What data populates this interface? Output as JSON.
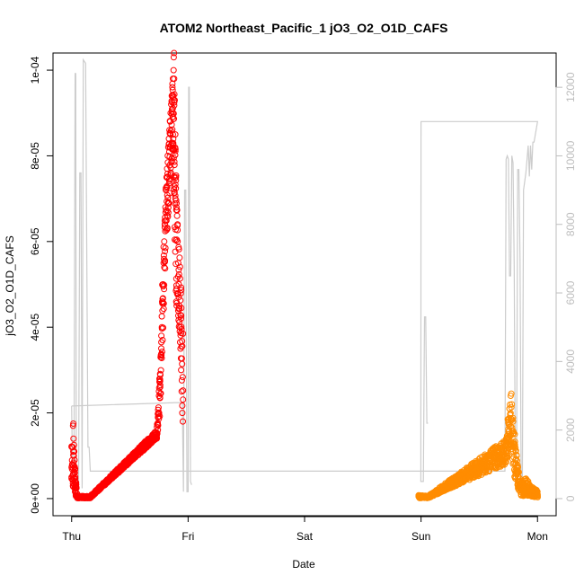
{
  "chart_data": {
    "type": "scatter",
    "title": "ATOM2 Northeast_Pacific_1 jO3_O2_O1D_CAFS",
    "xlabel": "Date",
    "ylabel": "jO3_O2_O1D_CAFS",
    "x_unit": "days since Thu 00:00",
    "xlim": [
      -0.16,
      4.16
    ],
    "ylim": [
      -4e-06,
      0.000104
    ],
    "y2lim": [
      -500,
      13000
    ],
    "x_ticks": [
      {
        "value": 0,
        "label": "Thu"
      },
      {
        "value": 1,
        "label": "Fri"
      },
      {
        "value": 2,
        "label": "Sat"
      },
      {
        "value": 3,
        "label": "Sun"
      },
      {
        "value": 4,
        "label": "Mon"
      }
    ],
    "y_ticks": [
      {
        "value": 0,
        "label": "0e+00"
      },
      {
        "value": 2e-05,
        "label": "2e-05"
      },
      {
        "value": 4e-05,
        "label": "4e-05"
      },
      {
        "value": 6e-05,
        "label": "6e-05"
      },
      {
        "value": 8e-05,
        "label": "8e-05"
      },
      {
        "value": 0.0001,
        "label": "1e-04"
      }
    ],
    "y2_ticks": [
      {
        "value": 0,
        "label": "0"
      },
      {
        "value": 2000,
        "label": "2000"
      },
      {
        "value": 4000,
        "label": "4000"
      },
      {
        "value": 6000,
        "label": "6000"
      },
      {
        "value": 8000,
        "label": "8000"
      },
      {
        "value": 10000,
        "label": "10000"
      },
      {
        "value": 12000,
        "label": "12000"
      }
    ],
    "grid": false,
    "series": [
      {
        "color": "#ff0000",
        "marker": "open-circle",
        "points": [
          [
            0.0,
            5e-06
          ],
          [
            0.005,
            8e-06
          ],
          [
            0.01,
            1.2e-05
          ],
          [
            0.012,
            1.7e-05
          ],
          [
            0.014,
            1.75e-05
          ],
          [
            0.016,
            1.4e-05
          ],
          [
            0.018,
            1e-05
          ],
          [
            0.02,
            1.25e-05
          ],
          [
            0.022,
            1.1e-05
          ],
          [
            0.025,
            9e-06
          ],
          [
            0.028,
            6e-06
          ],
          [
            0.03,
            7e-06
          ],
          [
            0.032,
            3e-06
          ],
          [
            0.035,
            1.5e-06
          ],
          [
            0.04,
            8e-07
          ],
          [
            0.05,
            4e-07
          ],
          [
            0.06,
            3e-07
          ],
          [
            0.07,
            2e-07
          ],
          [
            0.08,
            2e-07
          ],
          [
            0.09,
            2e-07
          ],
          [
            0.1,
            2e-07
          ],
          [
            0.11,
            2e-07
          ],
          [
            0.12,
            2e-07
          ],
          [
            0.13,
            2e-07
          ],
          [
            0.14,
            2e-07
          ],
          [
            0.15,
            2e-07
          ],
          [
            0.73,
            1.45e-05
          ],
          [
            0.74,
            1.6e-05
          ],
          [
            0.75,
            2e-05
          ],
          [
            0.76,
            2.6e-05
          ],
          [
            0.765,
            3.3e-05
          ],
          [
            0.77,
            3.8e-05
          ],
          [
            0.775,
            4e-05
          ],
          [
            0.78,
            4.6e-05
          ],
          [
            0.785,
            5e-05
          ],
          [
            0.79,
            5.5e-05
          ],
          [
            0.795,
            6e-05
          ],
          [
            0.8,
            6.4e-05
          ],
          [
            0.805,
            6.8e-05
          ],
          [
            0.81,
            7.2e-05
          ],
          [
            0.815,
            7.5e-05
          ],
          [
            0.82,
            7.7e-05
          ],
          [
            0.825,
            8e-05
          ],
          [
            0.83,
            8.2e-05
          ],
          [
            0.835,
            8.4e-05
          ],
          [
            0.84,
            8.6e-05
          ],
          [
            0.845,
            8.8e-05
          ],
          [
            0.85,
            9e-05
          ],
          [
            0.855,
            9.2e-05
          ],
          [
            0.86,
            9.4e-05
          ],
          [
            0.865,
            9.6e-05
          ],
          [
            0.87,
            9.8e-05
          ],
          [
            0.875,
            0.0001
          ],
          [
            0.877,
            0.000103
          ],
          [
            0.879,
            0.000104
          ],
          [
            0.88,
            9.8e-05
          ],
          [
            0.885,
            9.3e-05
          ],
          [
            0.89,
            8.5e-05
          ],
          [
            0.895,
            7.5e-05
          ],
          [
            0.9,
            6.8e-05
          ],
          [
            0.905,
            6.6e-05
          ],
          [
            0.91,
            6e-05
          ],
          [
            0.915,
            5.5e-05
          ],
          [
            0.92,
            5e-05
          ],
          [
            0.925,
            4.5e-05
          ],
          [
            0.93,
            4e-05
          ],
          [
            0.935,
            3.5e-05
          ],
          [
            0.94,
            3e-05
          ],
          [
            0.945,
            2.5e-05
          ],
          [
            0.95,
            2e-05
          ],
          [
            0.955,
            1.8e-05
          ]
        ],
        "bands": [
          [
            0.0,
            4e-06,
            1.3e-05
          ],
          [
            0.015,
            2e-06,
            1.1e-05
          ],
          [
            0.03,
            5e-07,
            7e-06
          ],
          [
            0.05,
            1e-07,
            6e-07
          ],
          [
            0.16,
            1e-07,
            6e-07
          ],
          [
            0.73,
            1.4e-05,
            1.6e-05
          ],
          [
            0.76,
            2e-05,
            3e-05
          ],
          [
            0.78,
            3.5e-05,
            5e-05
          ],
          [
            0.8,
            5e-05,
            6.8e-05
          ],
          [
            0.82,
            6.2e-05,
            7.8e-05
          ],
          [
            0.84,
            7e-05,
            8.7e-05
          ],
          [
            0.86,
            7.7e-05,
            9.5e-05
          ],
          [
            0.87,
            8e-05,
            9.8e-05
          ],
          [
            0.88,
            7e-05,
            9.8e-05
          ],
          [
            0.89,
            5.5e-05,
            9e-05
          ],
          [
            0.9,
            4.5e-05,
            7e-05
          ],
          [
            0.92,
            4e-05,
            6e-05
          ],
          [
            0.94,
            2.8e-05,
            5e-05
          ],
          [
            0.955,
            1.8e-05,
            4e-05
          ]
        ]
      },
      {
        "color": "#ff8c00",
        "marker": "open-circle",
        "points": [
          [
            2.99,
            5e-07
          ],
          [
            3.0,
            6e-07
          ],
          [
            3.01,
            4e-07
          ],
          [
            3.02,
            3e-07
          ],
          [
            3.03,
            3e-07
          ],
          [
            3.04,
            2e-07
          ],
          [
            3.05,
            2e-07
          ],
          [
            3.06,
            2e-07
          ],
          [
            3.73,
            8.5e-06
          ],
          [
            3.74,
            1.4e-05
          ],
          [
            3.75,
            1.8e-05
          ],
          [
            3.76,
            2.1e-05
          ],
          [
            3.77,
            2.4e-05
          ],
          [
            3.775,
            2.45e-05
          ],
          [
            3.78,
            2.2e-05
          ],
          [
            3.79,
            1.8e-05
          ],
          [
            3.8,
            1.2e-05
          ],
          [
            3.81,
            8e-06
          ],
          [
            3.82,
            6e-06
          ],
          [
            3.83,
            4e-06
          ],
          [
            3.84,
            2e-06
          ],
          [
            3.86,
            1e-06
          ],
          [
            3.88,
            8e-07
          ],
          [
            3.9,
            3e-06
          ],
          [
            3.92,
            4e-06
          ],
          [
            3.94,
            1.5e-06
          ],
          [
            3.96,
            1e-06
          ],
          [
            3.98,
            8e-07
          ],
          [
            4.0,
            6e-07
          ]
        ],
        "bands": [
          [
            2.98,
            1e-07,
            8e-07
          ],
          [
            3.06,
            1e-07,
            6e-07
          ],
          [
            3.73,
            8e-06,
            1.4e-05
          ],
          [
            3.75,
            1e-05,
            2e-05
          ],
          [
            3.77,
            1.2e-05,
            2.4e-05
          ],
          [
            3.79,
            8e-06,
            2e-05
          ],
          [
            3.81,
            4e-06,
            1.4e-05
          ],
          [
            3.83,
            2e-06,
            8e-06
          ],
          [
            3.86,
            5e-07,
            4e-06
          ],
          [
            3.9,
            8e-07,
            5e-06
          ],
          [
            3.94,
            5e-07,
            3e-06
          ],
          [
            4.0,
            3e-07,
            2e-06
          ]
        ]
      },
      {
        "color": "#cccccc",
        "marker": "line",
        "axis": "right",
        "points": [
          [
            0.0,
            2700
          ],
          [
            0.01,
            400
          ],
          [
            0.02,
            300
          ],
          [
            0.03,
            12400
          ],
          [
            0.035,
            12400
          ],
          [
            0.04,
            300
          ],
          [
            0.06,
            300
          ],
          [
            0.07,
            9500
          ],
          [
            0.08,
            9500
          ],
          [
            0.09,
            300
          ],
          [
            0.1,
            12800
          ],
          [
            0.12,
            12700
          ],
          [
            0.14,
            1500
          ],
          [
            0.15,
            1500
          ],
          [
            0.16,
            800
          ],
          [
            1.0,
            800
          ],
          [
            1.5,
            800
          ],
          [
            2.0,
            800
          ],
          [
            2.5,
            800
          ],
          [
            2.9,
            800
          ],
          [
            3.6,
            800
          ],
          [
            3.7,
            800
          ],
          [
            3.72,
            800
          ],
          [
            3.73,
            9900
          ],
          [
            3.74,
            10000
          ],
          [
            3.75,
            9900
          ],
          [
            3.76,
            6500
          ],
          [
            3.77,
            6500
          ],
          [
            3.78,
            10000
          ],
          [
            3.79,
            9800
          ],
          [
            3.8,
            6800
          ],
          [
            3.81,
            500
          ],
          [
            3.82,
            500
          ],
          [
            3.83,
            9600
          ],
          [
            3.84,
            9600
          ],
          [
            3.85,
            7000
          ],
          [
            3.86,
            300
          ],
          [
            3.87,
            400
          ],
          [
            3.88,
            9000
          ],
          [
            3.9,
            9500
          ],
          [
            3.92,
            10300
          ],
          [
            3.93,
            9400
          ],
          [
            3.94,
            10300
          ],
          [
            3.95,
            9600
          ],
          [
            3.96,
            10400
          ],
          [
            3.97,
            10400
          ],
          [
            4.0,
            11000
          ],
          [
            3.96,
            11000
          ],
          [
            3.5,
            11000
          ],
          [
            3.0,
            11000
          ],
          [
            2.998,
            500
          ],
          [
            3.02,
            500
          ],
          [
            3.03,
            5300
          ],
          [
            3.04,
            5300
          ],
          [
            3.05,
            2200
          ],
          [
            3.06,
            2200
          ]
        ],
        "extra_points": [
          [
            0.0,
            2700
          ],
          [
            0.9,
            2800
          ],
          [
            0.95,
            2800
          ],
          [
            0.96,
            200
          ],
          [
            0.97,
            9000
          ],
          [
            0.98,
            9000
          ],
          [
            0.99,
            200
          ],
          [
            1.0,
            200
          ],
          [
            1.005,
            12000
          ],
          [
            1.01,
            12000
          ],
          [
            1.02,
            500
          ],
          [
            1.03,
            400
          ]
        ]
      }
    ]
  }
}
